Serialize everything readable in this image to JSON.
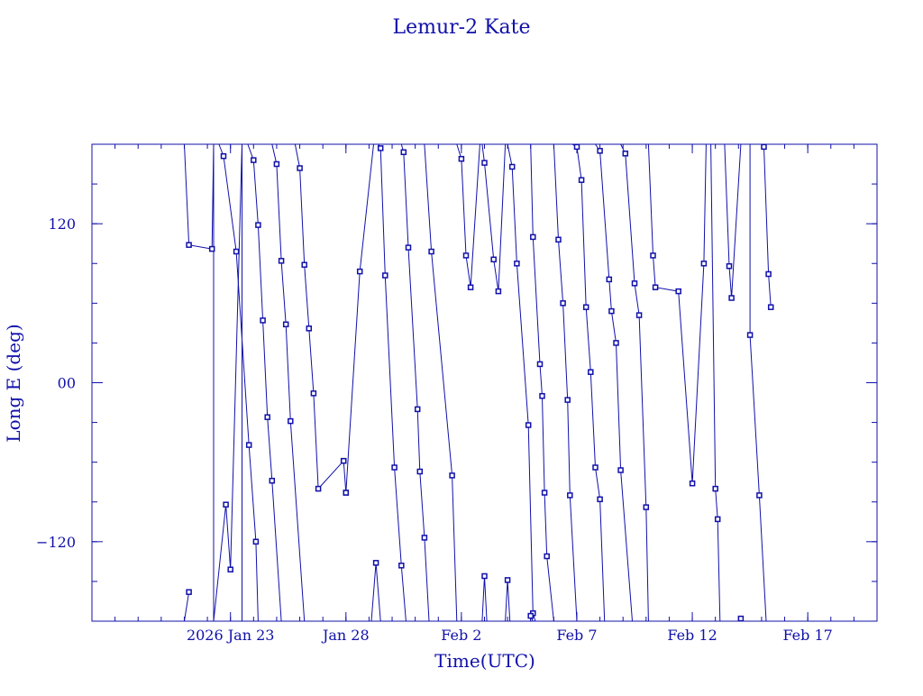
{
  "chart_data": {
    "type": "line",
    "title": "Lemur-2 Kate",
    "xlabel": "Time(UTC)",
    "ylabel": "Long E (deg)",
    "x_unit": "days",
    "xlim": [
      "2026-01-17",
      "2026-02-20"
    ],
    "ylim": [
      -180,
      180
    ],
    "x_tick_labels": [
      {
        "date": "2026-01-23",
        "label": "2026 Jan 23"
      },
      {
        "date": "2026-01-28",
        "label": "Jan 28"
      },
      {
        "date": "2026-02-02",
        "label": "Feb  2"
      },
      {
        "date": "2026-02-07",
        "label": "Feb  7"
      },
      {
        "date": "2026-02-12",
        "label": "Feb 12"
      },
      {
        "date": "2026-02-17",
        "label": "Feb 17"
      }
    ],
    "y_ticks": [
      {
        "value": 120,
        "label": "120"
      },
      {
        "value": 0,
        "label": "00"
      },
      {
        "value": -120,
        "label": "−120"
      }
    ],
    "grid": false,
    "color": "#1010aa",
    "series": [
      {
        "points": [
          [
            "2026-01-21T00:00",
            180
          ],
          [
            "2026-01-21T04:48",
            104
          ],
          [
            "2026-01-22T04:48",
            101
          ],
          [
            "2026-01-22T06:30",
            180
          ],
          [
            "2026-01-22T06:30",
            -180
          ],
          [
            "2026-01-22T19:12",
            -92
          ],
          [
            "2026-01-23T00:00",
            -141
          ],
          [
            "2026-01-23T12:00",
            180
          ],
          [
            "2026-01-23T12:00",
            -180
          ],
          [
            "2026-01-23T16:48",
            -181
          ]
        ]
      },
      {
        "points": [
          [
            "2026-01-21T00:00",
            -180
          ],
          [
            "2026-01-21T04:48",
            -158
          ]
        ]
      },
      {
        "points": [
          [
            "2026-01-21T16:48",
            -180
          ],
          [
            "2026-01-22T06:30",
            -180
          ]
        ]
      },
      {
        "points": [
          [
            "2026-01-22T12:00",
            180
          ],
          [
            "2026-01-22T16:48",
            171
          ],
          [
            "2026-01-23T06:00",
            99
          ],
          [
            "2026-01-23T19:12",
            -47
          ],
          [
            "2026-01-24T02:24",
            -120
          ],
          [
            "2026-01-24T04:48",
            -180
          ]
        ]
      },
      {
        "points": [
          [
            "2026-01-23T18:00",
            180
          ],
          [
            "2026-01-24T00:00",
            168
          ],
          [
            "2026-01-24T04:48",
            119
          ],
          [
            "2026-01-24T09:36",
            47
          ],
          [
            "2026-01-24T14:24",
            -26
          ],
          [
            "2026-01-24T19:12",
            -74
          ],
          [
            "2026-01-25T04:48",
            -180
          ]
        ]
      },
      {
        "points": [
          [
            "2026-01-24T19:12",
            180
          ],
          [
            "2026-01-25T00:00",
            165
          ],
          [
            "2026-01-25T04:48",
            92
          ],
          [
            "2026-01-25T09:36",
            44
          ],
          [
            "2026-01-25T14:24",
            -29
          ],
          [
            "2026-01-26T04:48",
            -180
          ]
        ]
      },
      {
        "points": [
          [
            "2026-01-25T19:12",
            180
          ],
          [
            "2026-01-26T00:00",
            162
          ],
          [
            "2026-01-26T04:48",
            89
          ],
          [
            "2026-01-26T09:36",
            41
          ],
          [
            "2026-01-26T14:24",
            -8
          ],
          [
            "2026-01-26T19:12",
            -80
          ],
          [
            "2026-01-27T21:36",
            -59
          ],
          [
            "2026-01-28T00:00",
            -83
          ],
          [
            "2026-01-27T21:36",
            -59
          ]
        ]
      },
      {
        "points": [
          [
            "2026-01-28T00:00",
            -83
          ],
          [
            "2026-01-28T14:24",
            84
          ],
          [
            "2026-01-29T04:48",
            180
          ]
        ]
      },
      {
        "points": [
          [
            "2026-01-29T02:24",
            -180
          ],
          [
            "2026-01-29T07:12",
            -136
          ],
          [
            "2026-01-29T12:00",
            -180
          ]
        ]
      },
      {
        "points": [
          [
            "2026-01-29T09:36",
            180
          ],
          [
            "2026-01-29T12:00",
            177
          ],
          [
            "2026-01-29T16:48",
            81
          ],
          [
            "2026-01-30T02:24",
            -64
          ],
          [
            "2026-01-30T09:36",
            -138
          ],
          [
            "2026-01-30T14:24",
            -180
          ]
        ]
      },
      {
        "points": [
          [
            "2026-01-30T09:36",
            180
          ],
          [
            "2026-01-30T12:00",
            174
          ],
          [
            "2026-01-30T16:48",
            102
          ],
          [
            "2026-01-31T02:24",
            -20
          ],
          [
            "2026-01-31T04:48",
            -67
          ],
          [
            "2026-01-31T09:36",
            -117
          ],
          [
            "2026-01-31T14:24",
            -180
          ]
        ]
      },
      {
        "points": [
          [
            "2026-01-31T09:36",
            180
          ],
          [
            "2026-01-31T16:48",
            99
          ],
          [
            "2026-02-01T14:24",
            -70
          ],
          [
            "2026-02-01T19:12",
            -180
          ]
        ]
      },
      {
        "points": [
          [
            "2026-02-01T19:12",
            180
          ],
          [
            "2026-02-02T00:00",
            169
          ],
          [
            "2026-02-02T04:48",
            96
          ],
          [
            "2026-02-02T09:36",
            72
          ],
          [
            "2026-02-02T19:12",
            180
          ]
        ]
      },
      {
        "points": [
          [
            "2026-02-02T21:36",
            -180
          ],
          [
            "2026-02-03T00:00",
            -146
          ],
          [
            "2026-02-03T02:24",
            -180
          ]
        ]
      },
      {
        "points": [
          [
            "2026-02-02T21:36",
            180
          ],
          [
            "2026-02-03T00:00",
            166
          ],
          [
            "2026-02-03T09:36",
            93
          ],
          [
            "2026-02-03T14:24",
            69
          ],
          [
            "2026-02-03T21:36",
            180
          ]
        ]
      },
      {
        "points": [
          [
            "2026-02-03T21:36",
            -180
          ],
          [
            "2026-02-04T00:00",
            -149
          ],
          [
            "2026-02-04T02:24",
            -180
          ]
        ]
      },
      {
        "points": [
          [
            "2026-02-04T00:00",
            180
          ],
          [
            "2026-02-04T04:48",
            163
          ],
          [
            "2026-02-04T09:36",
            90
          ],
          [
            "2026-02-04T21:36",
            -32
          ],
          [
            "2026-02-05T02:24",
            -174
          ],
          [
            "2026-02-05T04:48",
            -180
          ]
        ]
      },
      {
        "points": [
          [
            "2026-02-05T00:00",
            180
          ],
          [
            "2026-02-05T02:24",
            110
          ],
          [
            "2026-02-05T09:36",
            14
          ],
          [
            "2026-02-05T12:00",
            -10
          ],
          [
            "2026-02-05T14:24",
            -83
          ],
          [
            "2026-02-05T16:48",
            -131
          ],
          [
            "2026-02-06T00:00",
            -180
          ]
        ]
      },
      {
        "points": [
          [
            "2026-02-05T00:00",
            -180
          ],
          [
            "2026-02-05T00:00",
            -176
          ],
          [
            "2026-02-05T02:24",
            -180
          ]
        ]
      },
      {
        "points": [
          [
            "2026-02-06T00:00",
            180
          ],
          [
            "2026-02-06T04:48",
            108
          ],
          [
            "2026-02-06T09:36",
            60
          ],
          [
            "2026-02-06T14:24",
            -13
          ],
          [
            "2026-02-06T16:48",
            -85
          ],
          [
            "2026-02-07T00:00",
            -180
          ]
        ]
      },
      {
        "points": [
          [
            "2026-02-06T19:12",
            180
          ],
          [
            "2026-02-07T00:00",
            178
          ],
          [
            "2026-02-07T04:48",
            153
          ],
          [
            "2026-02-07T09:36",
            57
          ],
          [
            "2026-02-07T14:24",
            8
          ],
          [
            "2026-02-07T19:12",
            -64
          ],
          [
            "2026-02-08T00:00",
            -88
          ],
          [
            "2026-02-08T04:48",
            -180
          ]
        ]
      },
      {
        "points": [
          [
            "2026-02-07T19:12",
            180
          ],
          [
            "2026-02-08T00:00",
            175
          ],
          [
            "2026-02-08T09:36",
            78
          ],
          [
            "2026-02-08T12:00",
            54
          ],
          [
            "2026-02-08T16:48",
            30
          ],
          [
            "2026-02-08T21:36",
            -66
          ],
          [
            "2026-02-09T09:36",
            -180
          ]
        ]
      },
      {
        "points": [
          [
            "2026-02-08T21:36",
            180
          ],
          [
            "2026-02-09T02:24",
            173
          ],
          [
            "2026-02-09T12:00",
            75
          ],
          [
            "2026-02-09T16:48",
            51
          ],
          [
            "2026-02-10T00:00",
            -94
          ],
          [
            "2026-02-10T02:24",
            -180
          ]
        ]
      },
      {
        "points": [
          [
            "2026-02-10T02:24",
            180
          ],
          [
            "2026-02-10T07:12",
            96
          ],
          [
            "2026-02-10T09:36",
            72
          ],
          [
            "2026-02-11T09:36",
            69
          ],
          [
            "2026-02-12T00:00",
            -76
          ],
          [
            "2026-02-12T12:00",
            90
          ],
          [
            "2026-02-12T14:24",
            180
          ]
        ]
      },
      {
        "points": [
          [
            "2026-02-12T19:12",
            180
          ],
          [
            "2026-02-13T00:00",
            -80
          ],
          [
            "2026-02-13T02:24",
            -103
          ],
          [
            "2026-02-13T04:48",
            -180
          ]
        ]
      },
      {
        "points": [
          [
            "2026-02-13T09:36",
            180
          ],
          [
            "2026-02-13T14:24",
            88
          ],
          [
            "2026-02-13T16:48",
            64
          ],
          [
            "2026-02-14T02:24",
            180
          ]
        ]
      },
      {
        "points": [
          [
            "2026-02-14T02:24",
            -180
          ],
          [
            "2026-02-14T02:24",
            -178
          ],
          [
            "2026-02-14T04:48",
            -180
          ]
        ]
      },
      {
        "points": [
          [
            "2026-02-14T12:00",
            180
          ],
          [
            "2026-02-14T12:00",
            36
          ],
          [
            "2026-02-14T21:36",
            -85
          ],
          [
            "2026-02-15T04:48",
            -180
          ]
        ]
      },
      {
        "points": [
          [
            "2026-02-15T00:00",
            180
          ],
          [
            "2026-02-15T02:24",
            178
          ],
          [
            "2026-02-15T07:12",
            82
          ],
          [
            "2026-02-15T09:36",
            57
          ]
        ]
      }
    ]
  }
}
